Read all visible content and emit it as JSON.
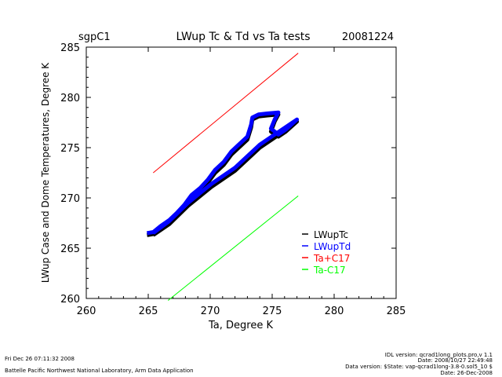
{
  "chart_data": {
    "type": "line",
    "site": "sgpC1",
    "title": "LWup Tc & Td vs Ta tests",
    "date": "20081224",
    "xlabel": "Ta, Degree K",
    "ylabel": "LWup Case and Dome Temperatures, Degree K",
    "xlim": [
      260,
      285
    ],
    "ylim": [
      260,
      285
    ],
    "xticks": [
      "260",
      "265",
      "270",
      "275",
      "280",
      "285"
    ],
    "yticks": [
      "260",
      "265",
      "270",
      "275",
      "280",
      "285"
    ],
    "grid": false,
    "legend_position": "bottom-right",
    "series": [
      {
        "name": "LWupTc",
        "color": "#000000",
        "style": "scatter-dense",
        "x": [
          264.9,
          265.4,
          266.0,
          266.7,
          267.3,
          267.9,
          268.5,
          269.2,
          269.8,
          270.4,
          271.1,
          271.7,
          272.3,
          273.0,
          273.3,
          273.4,
          273.9,
          274.6,
          275.5,
          275.2,
          274.9,
          275.5,
          276.1,
          277.0,
          275.8,
          274.0,
          272.0,
          270.1,
          268.2,
          266.7,
          265.4
        ],
        "y": [
          266.3,
          266.4,
          267.0,
          267.6,
          268.2,
          269.0,
          270.0,
          270.8,
          271.5,
          272.5,
          273.3,
          274.3,
          275.0,
          275.8,
          277.0,
          277.8,
          278.1,
          278.2,
          278.3,
          277.6,
          276.6,
          276.1,
          276.6,
          277.6,
          276.5,
          275.0,
          272.7,
          271.1,
          269.2,
          267.4,
          266.3
        ]
      },
      {
        "name": "LWupTd",
        "color": "#0000ff",
        "style": "scatter-dense",
        "x": [
          264.9,
          265.4,
          266.0,
          266.7,
          267.3,
          267.9,
          268.5,
          269.2,
          269.8,
          270.4,
          271.1,
          271.7,
          272.3,
          273.0,
          273.3,
          273.4,
          273.9,
          274.6,
          275.5,
          275.2,
          274.9,
          275.5,
          276.1,
          277.0,
          275.8,
          274.0,
          272.0,
          270.1,
          268.2,
          266.7,
          265.4
        ],
        "y": [
          266.5,
          266.6,
          267.2,
          267.8,
          268.5,
          269.3,
          270.3,
          271.0,
          271.8,
          272.8,
          273.6,
          274.6,
          275.3,
          276.1,
          277.3,
          278.0,
          278.3,
          278.4,
          278.5,
          277.8,
          276.9,
          276.3,
          276.8,
          277.8,
          276.8,
          275.3,
          273.0,
          271.4,
          269.5,
          267.7,
          266.5
        ]
      },
      {
        "name": "Ta+C17",
        "color": "#ff0000",
        "style": "line",
        "x": [
          265.4,
          277.1
        ],
        "y": [
          272.5,
          284.4
        ]
      },
      {
        "name": "Ta-C17",
        "color": "#00ff00",
        "style": "line",
        "x": [
          266.6,
          277.1
        ],
        "y": [
          259.8,
          270.2
        ]
      }
    ]
  },
  "footer": {
    "timestamp": "Fri Dec 26 07:11:32 2008",
    "org": "Battelle Pacific Northwest National Laboratory, Arm Data Application",
    "idl_version": "IDL version: qcrad1long_plots.pro,v 1.1",
    "idl_date": "Date: 2008/10/27 22:49:48",
    "data_version": "Data version: $State: vap-qcrad1long-3.8-0.sol5_10 $",
    "data_date": "Date: 26-Dec-2008"
  }
}
